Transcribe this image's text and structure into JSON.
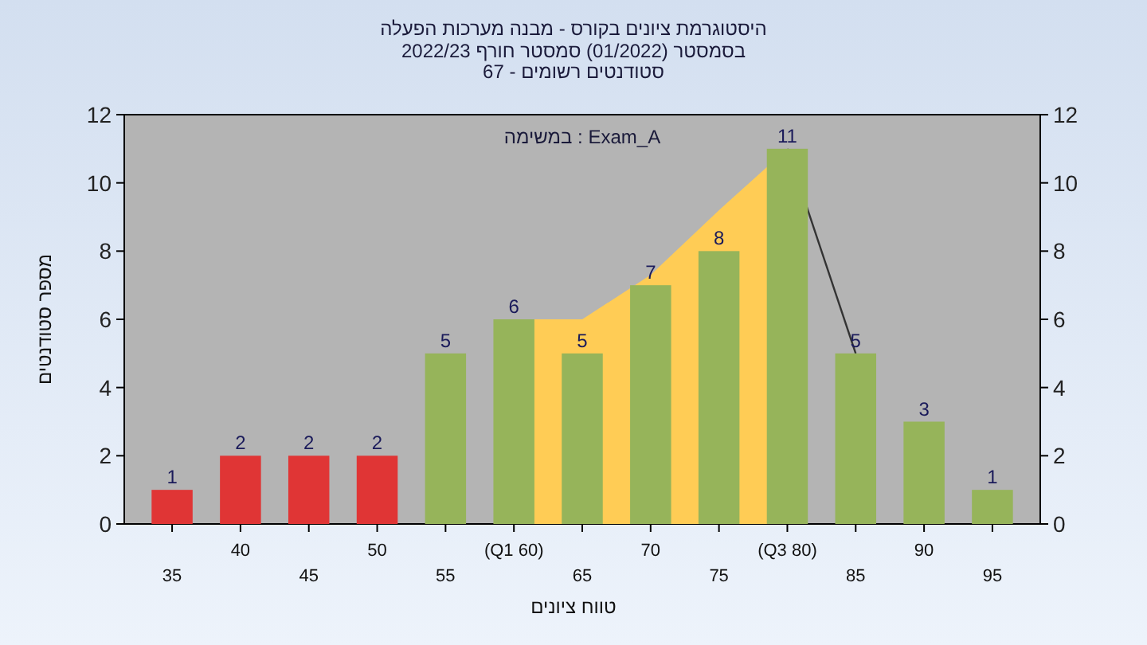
{
  "chart_data": {
    "type": "bar",
    "title": "היסטוגרמת ציונים בקורס - מבנה מערכות הפעלה",
    "subtitle": "בסמסטר (01/2022) סמסטר חורף 2022/23\nסטודנטים רשומים - 67",
    "xlabel": "טווח ציונים",
    "ylabel": "מספר סטודנטים",
    "annotations": [
      "במשימה : Exam_A"
    ],
    "categories": [
      "35",
      "40",
      "45",
      "50",
      "55",
      "(Q1 60)",
      "65",
      "70",
      "75",
      "(Q3 80)",
      "85",
      "90",
      "95"
    ],
    "series": [
      {
        "type": "area",
        "color": "#ffcc55",
        "values": [
          null,
          null,
          null,
          null,
          null,
          6,
          6,
          7.3,
          9.2,
          11,
          null,
          null,
          null
        ]
      },
      {
        "type": "line",
        "color": "#333333",
        "values": [
          null,
          null,
          null,
          null,
          null,
          null,
          null,
          null,
          null,
          11,
          5,
          null,
          null
        ]
      },
      {
        "colors": [
          "#e03535",
          "#e03535",
          "#e03535",
          "#e03535",
          "#96b45a",
          "#96b45a",
          "#96b45a",
          "#96b45a",
          "#96b45a",
          "#96b45a",
          "#96b45a",
          "#96b45a",
          "#96b45a"
        ],
        "values": [
          1,
          2,
          2,
          2,
          5,
          6,
          5,
          7,
          8,
          11,
          5,
          3,
          1
        ],
        "data_labels": true
      }
    ],
    "ylim": [
      0,
      12
    ],
    "yticks": [
      0,
      2,
      4,
      6,
      8,
      10,
      12
    ],
    "y2lim": [
      0,
      12
    ],
    "y2ticks": [
      0,
      2,
      4,
      6,
      8,
      10,
      12
    ],
    "grid": false
  }
}
